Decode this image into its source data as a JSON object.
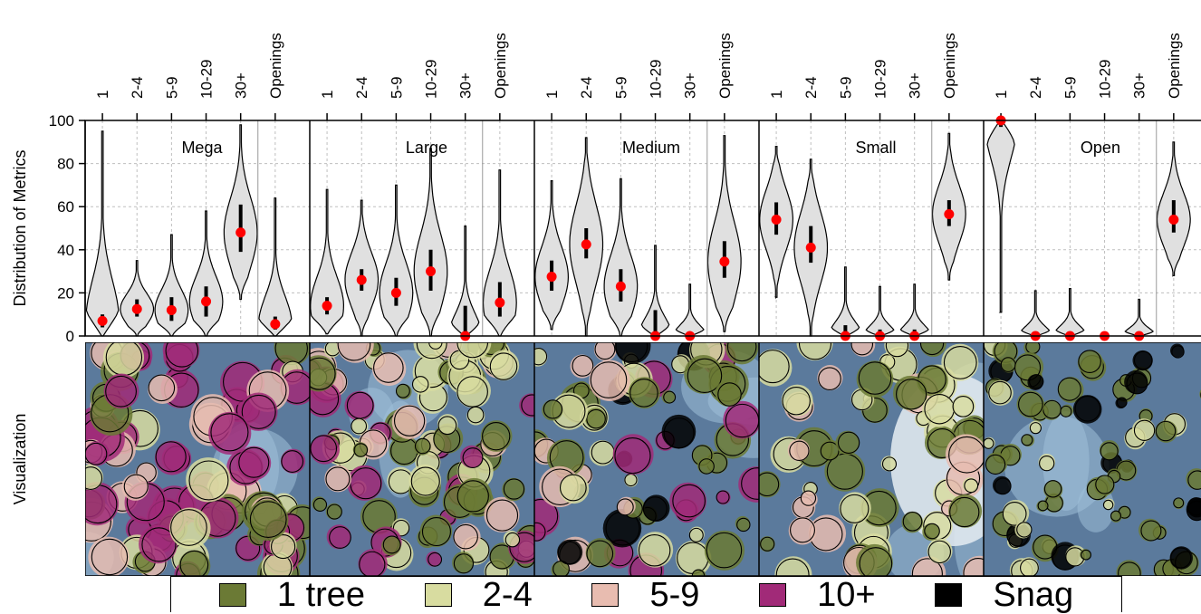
{
  "chart_data": {
    "type": "violin",
    "ylabel": "Distribution of Metrics",
    "row_label": "Visualization",
    "ylim": [
      0,
      100
    ],
    "yticks": [
      0,
      20,
      40,
      60,
      80,
      100
    ],
    "categories": [
      "1",
      "2-4",
      "5-9",
      "10-29",
      "30+",
      "Openings"
    ],
    "grid": true,
    "panels": [
      {
        "name": "Mega",
        "medians": [
          7,
          12.5,
          12,
          16,
          48,
          5.5
        ],
        "ranges": [
          [
            0,
            95
          ],
          [
            0,
            35
          ],
          [
            0,
            47
          ],
          [
            0,
            58
          ],
          [
            17,
            98
          ],
          [
            0,
            64
          ]
        ],
        "iqr": [
          [
            4,
            10
          ],
          [
            9,
            17
          ],
          [
            7,
            18
          ],
          [
            9,
            23
          ],
          [
            39,
            61
          ],
          [
            3,
            9
          ]
        ]
      },
      {
        "name": "Large",
        "medians": [
          14,
          26,
          20,
          30,
          0,
          15.5
        ],
        "ranges": [
          [
            1,
            68
          ],
          [
            0,
            63
          ],
          [
            0,
            70
          ],
          [
            0,
            87
          ],
          [
            0,
            51
          ],
          [
            0,
            77
          ]
        ],
        "iqr": [
          [
            10,
            18
          ],
          [
            21,
            31
          ],
          [
            14,
            27
          ],
          [
            21,
            40
          ],
          [
            0,
            14
          ],
          [
            9,
            25
          ]
        ]
      },
      {
        "name": "Medium",
        "medians": [
          27.5,
          42.5,
          23,
          0,
          0,
          34.5
        ],
        "ranges": [
          [
            3,
            72
          ],
          [
            0,
            92
          ],
          [
            0,
            73
          ],
          [
            0,
            42
          ],
          [
            0,
            24
          ],
          [
            2,
            93
          ]
        ],
        "iqr": [
          [
            21,
            35
          ],
          [
            36,
            50
          ],
          [
            16,
            31
          ],
          [
            0,
            12
          ],
          [
            0,
            2
          ],
          [
            27,
            44
          ]
        ]
      },
      {
        "name": "Small",
        "medians": [
          54,
          41,
          0,
          0,
          0,
          56.5
        ],
        "ranges": [
          [
            18,
            88
          ],
          [
            0,
            82
          ],
          [
            0,
            32
          ],
          [
            0,
            23
          ],
          [
            0,
            24
          ],
          [
            26,
            94
          ]
        ],
        "iqr": [
          [
            47,
            62
          ],
          [
            34,
            51
          ],
          [
            0,
            5
          ],
          [
            0,
            3
          ],
          [
            0,
            3
          ],
          [
            51,
            63
          ]
        ]
      },
      {
        "name": "Open",
        "medians": [
          100,
          0,
          0,
          0,
          0,
          54
        ],
        "ranges": [
          [
            11,
            100
          ],
          [
            0,
            21
          ],
          [
            0,
            22
          ],
          [
            0,
            0
          ],
          [
            0,
            17
          ],
          [
            28,
            90
          ]
        ],
        "iqr": [
          [
            97,
            100
          ],
          [
            0,
            2
          ],
          [
            0,
            1
          ],
          [
            0,
            0
          ],
          [
            0,
            0
          ],
          [
            48,
            63
          ]
        ]
      }
    ],
    "legend": {
      "position": "bottom",
      "items": [
        {
          "label": "1 tree",
          "color": "#6b7a35"
        },
        {
          "label": "2-4",
          "color": "#d8dca0"
        },
        {
          "label": "5-9",
          "color": "#e8bcb0"
        },
        {
          "label": "10+",
          "color": "#a12a78"
        },
        {
          "label": "Snag",
          "color": "#000000"
        }
      ]
    },
    "colors": {
      "violin_fill": "#e0e0e0",
      "median": "#ff0000",
      "grid": "#bfbfbf",
      "map_bg": "#5b7a9c",
      "map_light": "#9ec0d8"
    }
  }
}
